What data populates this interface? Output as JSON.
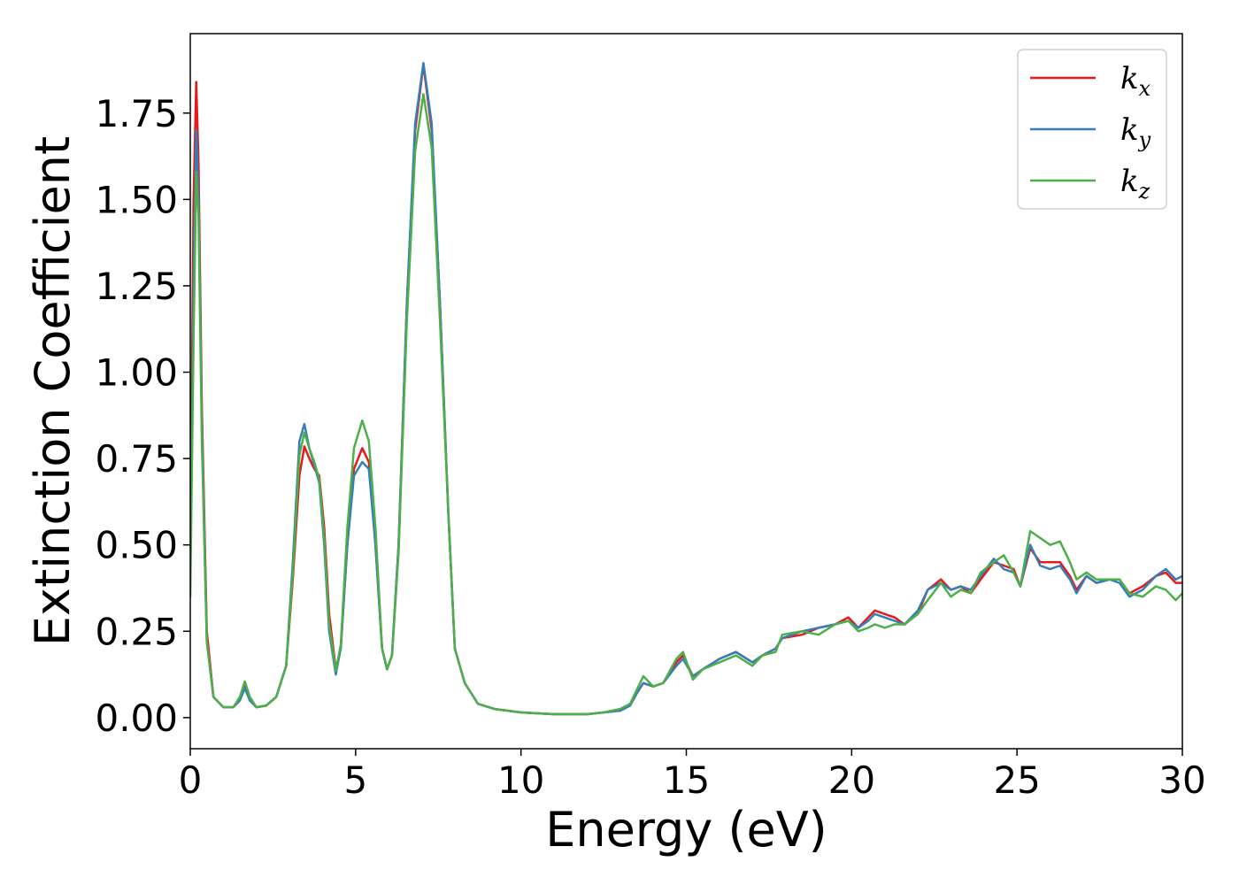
{
  "chart_data": {
    "type": "line",
    "title": "",
    "xlabel": "Energy (eV)",
    "ylabel": "Extinction Coefficient",
    "xlim": [
      0,
      30
    ],
    "ylim": [
      -0.09,
      1.98
    ],
    "xticks": [
      0,
      5,
      10,
      15,
      20,
      25,
      30
    ],
    "xtick_labels": [
      "0",
      "5",
      "10",
      "15",
      "20",
      "25",
      "30"
    ],
    "yticks": [
      0.0,
      0.25,
      0.5,
      0.75,
      1.0,
      1.25,
      1.5,
      1.75
    ],
    "ytick_labels": [
      "0.00",
      "0.25",
      "0.50",
      "0.75",
      "1.00",
      "1.25",
      "1.50",
      "1.75"
    ],
    "grid": false,
    "legend_position": "top-right",
    "series": [
      {
        "name": "k",
        "subscript": "x",
        "color": "#e41a1c",
        "points": [
          [
            0,
            0.45
          ],
          [
            0.1,
            1.5
          ],
          [
            0.18,
            1.84
          ],
          [
            0.25,
            1.6
          ],
          [
            0.35,
            0.9
          ],
          [
            0.5,
            0.25
          ],
          [
            0.7,
            0.06
          ],
          [
            1.0,
            0.03
          ],
          [
            1.3,
            0.03
          ],
          [
            1.5,
            0.05
          ],
          [
            1.65,
            0.09
          ],
          [
            1.8,
            0.05
          ],
          [
            2.0,
            0.03
          ],
          [
            2.3,
            0.035
          ],
          [
            2.6,
            0.06
          ],
          [
            2.9,
            0.15
          ],
          [
            3.1,
            0.4
          ],
          [
            3.3,
            0.7
          ],
          [
            3.45,
            0.785
          ],
          [
            3.6,
            0.75
          ],
          [
            3.75,
            0.72
          ],
          [
            3.9,
            0.7
          ],
          [
            4.05,
            0.55
          ],
          [
            4.2,
            0.3
          ],
          [
            4.4,
            0.14
          ],
          [
            4.55,
            0.2
          ],
          [
            4.75,
            0.5
          ],
          [
            4.95,
            0.72
          ],
          [
            5.2,
            0.78
          ],
          [
            5.4,
            0.74
          ],
          [
            5.6,
            0.5
          ],
          [
            5.8,
            0.2
          ],
          [
            5.95,
            0.14
          ],
          [
            6.1,
            0.18
          ],
          [
            6.3,
            0.5
          ],
          [
            6.55,
            1.2
          ],
          [
            6.8,
            1.7
          ],
          [
            7.05,
            1.89
          ],
          [
            7.3,
            1.7
          ],
          [
            7.55,
            1.2
          ],
          [
            7.8,
            0.6
          ],
          [
            8.0,
            0.2
          ],
          [
            8.3,
            0.1
          ],
          [
            8.7,
            0.04
          ],
          [
            9.2,
            0.025
          ],
          [
            10,
            0.015
          ],
          [
            11,
            0.01
          ],
          [
            12,
            0.01
          ],
          [
            12.5,
            0.015
          ],
          [
            13,
            0.02
          ],
          [
            13.3,
            0.035
          ],
          [
            13.5,
            0.07
          ],
          [
            13.7,
            0.1
          ],
          [
            14.0,
            0.09
          ],
          [
            14.3,
            0.1
          ],
          [
            14.7,
            0.16
          ],
          [
            14.9,
            0.18
          ],
          [
            15.2,
            0.12
          ],
          [
            15.5,
            0.14
          ],
          [
            16.0,
            0.17
          ],
          [
            16.5,
            0.19
          ],
          [
            17.0,
            0.16
          ],
          [
            17.3,
            0.18
          ],
          [
            17.7,
            0.2
          ],
          [
            17.9,
            0.23
          ],
          [
            18.5,
            0.24
          ],
          [
            19.0,
            0.26
          ],
          [
            19.5,
            0.27
          ],
          [
            19.9,
            0.29
          ],
          [
            20.2,
            0.26
          ],
          [
            20.5,
            0.29
          ],
          [
            20.7,
            0.31
          ],
          [
            21.0,
            0.3
          ],
          [
            21.3,
            0.29
          ],
          [
            21.6,
            0.27
          ],
          [
            22.0,
            0.3
          ],
          [
            22.3,
            0.37
          ],
          [
            22.7,
            0.4
          ],
          [
            23.0,
            0.37
          ],
          [
            23.3,
            0.38
          ],
          [
            23.6,
            0.36
          ],
          [
            23.9,
            0.4
          ],
          [
            24.3,
            0.45
          ],
          [
            24.6,
            0.44
          ],
          [
            24.9,
            0.43
          ],
          [
            25.1,
            0.38
          ],
          [
            25.4,
            0.49
          ],
          [
            25.7,
            0.45
          ],
          [
            26.0,
            0.45
          ],
          [
            26.3,
            0.45
          ],
          [
            26.6,
            0.41
          ],
          [
            26.8,
            0.37
          ],
          [
            27.1,
            0.41
          ],
          [
            27.4,
            0.39
          ],
          [
            27.8,
            0.4
          ],
          [
            28.1,
            0.4
          ],
          [
            28.4,
            0.36
          ],
          [
            28.8,
            0.38
          ],
          [
            29.2,
            0.41
          ],
          [
            29.5,
            0.42
          ],
          [
            29.8,
            0.39
          ],
          [
            30.0,
            0.39
          ]
        ]
      },
      {
        "name": "k",
        "subscript": "y",
        "color": "#377eb8",
        "points": [
          [
            0,
            0.4
          ],
          [
            0.1,
            1.25
          ],
          [
            0.18,
            1.7
          ],
          [
            0.25,
            1.5
          ],
          [
            0.35,
            0.85
          ],
          [
            0.5,
            0.22
          ],
          [
            0.7,
            0.06
          ],
          [
            1.0,
            0.03
          ],
          [
            1.3,
            0.03
          ],
          [
            1.5,
            0.05
          ],
          [
            1.65,
            0.085
          ],
          [
            1.8,
            0.05
          ],
          [
            2.0,
            0.03
          ],
          [
            2.3,
            0.035
          ],
          [
            2.6,
            0.06
          ],
          [
            2.9,
            0.15
          ],
          [
            3.1,
            0.45
          ],
          [
            3.3,
            0.8
          ],
          [
            3.45,
            0.85
          ],
          [
            3.6,
            0.78
          ],
          [
            3.75,
            0.73
          ],
          [
            3.9,
            0.68
          ],
          [
            4.05,
            0.5
          ],
          [
            4.2,
            0.25
          ],
          [
            4.4,
            0.125
          ],
          [
            4.55,
            0.2
          ],
          [
            4.75,
            0.5
          ],
          [
            4.95,
            0.7
          ],
          [
            5.2,
            0.74
          ],
          [
            5.4,
            0.72
          ],
          [
            5.6,
            0.5
          ],
          [
            5.8,
            0.2
          ],
          [
            5.95,
            0.14
          ],
          [
            6.1,
            0.18
          ],
          [
            6.3,
            0.5
          ],
          [
            6.55,
            1.2
          ],
          [
            6.8,
            1.72
          ],
          [
            7.05,
            1.895
          ],
          [
            7.3,
            1.72
          ],
          [
            7.55,
            1.2
          ],
          [
            7.8,
            0.6
          ],
          [
            8.0,
            0.2
          ],
          [
            8.3,
            0.1
          ],
          [
            8.7,
            0.04
          ],
          [
            9.2,
            0.025
          ],
          [
            10,
            0.015
          ],
          [
            11,
            0.01
          ],
          [
            12,
            0.01
          ],
          [
            12.5,
            0.015
          ],
          [
            13,
            0.02
          ],
          [
            13.3,
            0.035
          ],
          [
            13.5,
            0.07
          ],
          [
            13.7,
            0.1
          ],
          [
            14.0,
            0.09
          ],
          [
            14.3,
            0.1
          ],
          [
            14.7,
            0.15
          ],
          [
            14.9,
            0.17
          ],
          [
            15.2,
            0.12
          ],
          [
            15.5,
            0.14
          ],
          [
            16.0,
            0.17
          ],
          [
            16.5,
            0.19
          ],
          [
            17.0,
            0.16
          ],
          [
            17.3,
            0.18
          ],
          [
            17.7,
            0.2
          ],
          [
            17.9,
            0.23
          ],
          [
            18.5,
            0.25
          ],
          [
            19.0,
            0.26
          ],
          [
            19.5,
            0.27
          ],
          [
            19.9,
            0.28
          ],
          [
            20.2,
            0.26
          ],
          [
            20.5,
            0.28
          ],
          [
            20.7,
            0.3
          ],
          [
            21.0,
            0.29
          ],
          [
            21.3,
            0.28
          ],
          [
            21.6,
            0.27
          ],
          [
            22.0,
            0.31
          ],
          [
            22.3,
            0.37
          ],
          [
            22.7,
            0.39
          ],
          [
            23.0,
            0.37
          ],
          [
            23.3,
            0.38
          ],
          [
            23.6,
            0.37
          ],
          [
            23.9,
            0.41
          ],
          [
            24.3,
            0.46
          ],
          [
            24.6,
            0.43
          ],
          [
            24.9,
            0.42
          ],
          [
            25.1,
            0.38
          ],
          [
            25.4,
            0.5
          ],
          [
            25.7,
            0.44
          ],
          [
            26.0,
            0.43
          ],
          [
            26.3,
            0.44
          ],
          [
            26.6,
            0.4
          ],
          [
            26.8,
            0.36
          ],
          [
            27.1,
            0.41
          ],
          [
            27.4,
            0.39
          ],
          [
            27.8,
            0.4
          ],
          [
            28.1,
            0.39
          ],
          [
            28.4,
            0.35
          ],
          [
            28.8,
            0.37
          ],
          [
            29.2,
            0.41
          ],
          [
            29.5,
            0.43
          ],
          [
            29.8,
            0.4
          ],
          [
            30.0,
            0.41
          ]
        ]
      },
      {
        "name": "k",
        "subscript": "z",
        "color": "#4daf4a",
        "points": [
          [
            0,
            0.35
          ],
          [
            0.1,
            1.1
          ],
          [
            0.18,
            1.58
          ],
          [
            0.25,
            1.45
          ],
          [
            0.35,
            0.8
          ],
          [
            0.5,
            0.22
          ],
          [
            0.7,
            0.06
          ],
          [
            1.0,
            0.03
          ],
          [
            1.3,
            0.03
          ],
          [
            1.5,
            0.06
          ],
          [
            1.65,
            0.105
          ],
          [
            1.8,
            0.06
          ],
          [
            2.0,
            0.03
          ],
          [
            2.3,
            0.035
          ],
          [
            2.6,
            0.06
          ],
          [
            2.9,
            0.15
          ],
          [
            3.1,
            0.42
          ],
          [
            3.3,
            0.76
          ],
          [
            3.45,
            0.825
          ],
          [
            3.6,
            0.78
          ],
          [
            3.75,
            0.74
          ],
          [
            3.9,
            0.69
          ],
          [
            4.05,
            0.52
          ],
          [
            4.2,
            0.27
          ],
          [
            4.4,
            0.135
          ],
          [
            4.55,
            0.21
          ],
          [
            4.75,
            0.55
          ],
          [
            4.95,
            0.78
          ],
          [
            5.2,
            0.86
          ],
          [
            5.4,
            0.8
          ],
          [
            5.6,
            0.55
          ],
          [
            5.8,
            0.2
          ],
          [
            5.95,
            0.14
          ],
          [
            6.1,
            0.18
          ],
          [
            6.3,
            0.48
          ],
          [
            6.55,
            1.15
          ],
          [
            6.8,
            1.64
          ],
          [
            7.05,
            1.805
          ],
          [
            7.3,
            1.65
          ],
          [
            7.55,
            1.15
          ],
          [
            7.8,
            0.6
          ],
          [
            8.0,
            0.2
          ],
          [
            8.3,
            0.1
          ],
          [
            8.7,
            0.04
          ],
          [
            9.2,
            0.025
          ],
          [
            10,
            0.015
          ],
          [
            11,
            0.01
          ],
          [
            12,
            0.01
          ],
          [
            12.5,
            0.015
          ],
          [
            13,
            0.025
          ],
          [
            13.3,
            0.04
          ],
          [
            13.5,
            0.08
          ],
          [
            13.7,
            0.12
          ],
          [
            14.0,
            0.09
          ],
          [
            14.3,
            0.1
          ],
          [
            14.7,
            0.17
          ],
          [
            14.9,
            0.19
          ],
          [
            15.2,
            0.11
          ],
          [
            15.5,
            0.14
          ],
          [
            16.0,
            0.16
          ],
          [
            16.5,
            0.18
          ],
          [
            17.0,
            0.15
          ],
          [
            17.3,
            0.18
          ],
          [
            17.7,
            0.19
          ],
          [
            17.9,
            0.24
          ],
          [
            18.5,
            0.25
          ],
          [
            19.0,
            0.24
          ],
          [
            19.5,
            0.27
          ],
          [
            19.9,
            0.28
          ],
          [
            20.2,
            0.25
          ],
          [
            20.5,
            0.26
          ],
          [
            20.7,
            0.27
          ],
          [
            21.0,
            0.26
          ],
          [
            21.3,
            0.27
          ],
          [
            21.6,
            0.27
          ],
          [
            22.0,
            0.3
          ],
          [
            22.3,
            0.34
          ],
          [
            22.7,
            0.39
          ],
          [
            23.0,
            0.35
          ],
          [
            23.3,
            0.37
          ],
          [
            23.6,
            0.36
          ],
          [
            23.9,
            0.42
          ],
          [
            24.3,
            0.45
          ],
          [
            24.6,
            0.47
          ],
          [
            24.9,
            0.42
          ],
          [
            25.1,
            0.38
          ],
          [
            25.4,
            0.54
          ],
          [
            25.7,
            0.52
          ],
          [
            26.0,
            0.5
          ],
          [
            26.3,
            0.51
          ],
          [
            26.6,
            0.45
          ],
          [
            26.8,
            0.4
          ],
          [
            27.1,
            0.42
          ],
          [
            27.4,
            0.4
          ],
          [
            27.8,
            0.4
          ],
          [
            28.1,
            0.4
          ],
          [
            28.4,
            0.36
          ],
          [
            28.8,
            0.35
          ],
          [
            29.2,
            0.38
          ],
          [
            29.5,
            0.37
          ],
          [
            29.8,
            0.34
          ],
          [
            30.0,
            0.36
          ]
        ]
      }
    ]
  }
}
